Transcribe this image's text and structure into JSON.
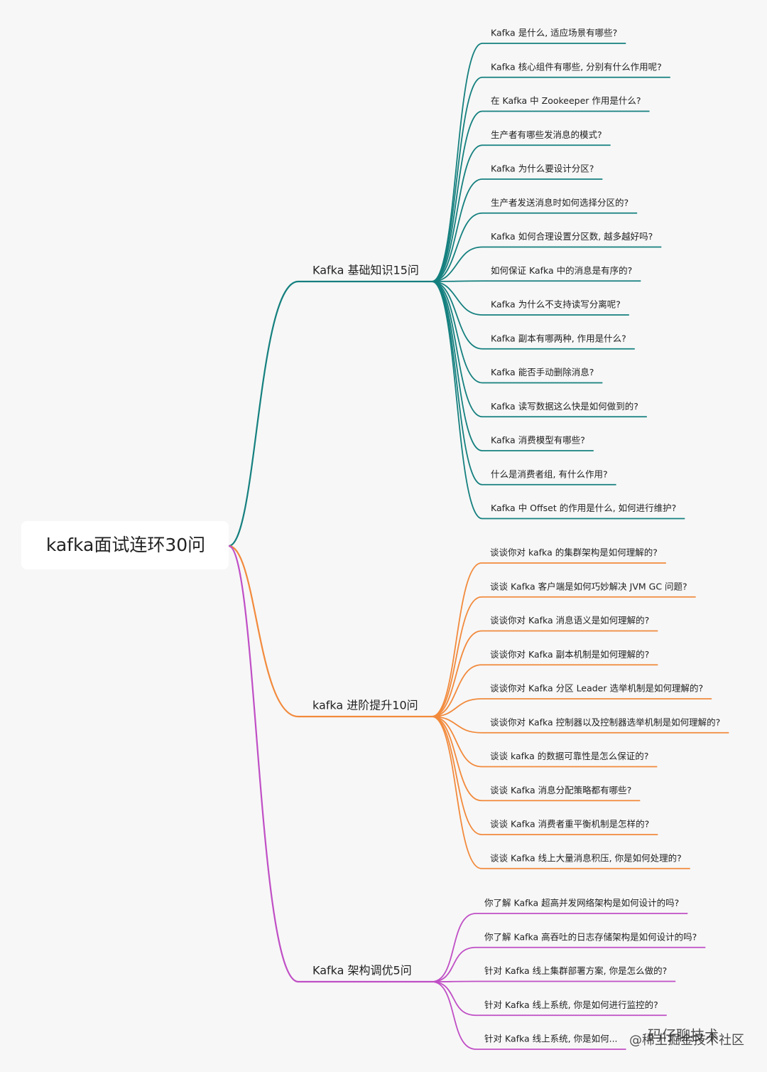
{
  "root": {
    "label": "kafka面试连环30问"
  },
  "branches": [
    {
      "label": "Kafka 基础知识15问",
      "color": "#15807f",
      "children": [
        "Kafka 是什么, 适应场景有哪些?",
        "Kafka 核心组件有哪些, 分别有什么作用呢?",
        "在 Kafka 中 Zookeeper 作用是什么?",
        "生产者有哪些发消息的模式?",
        "Kafka 为什么要设计分区?",
        "生产者发送消息时如何选择分区的?",
        "Kafka 如何合理设置分区数, 越多越好吗?",
        "如何保证 Kafka 中的消息是有序的?",
        "Kafka 为什么不支持读写分离呢?",
        "Kafka 副本有哪两种, 作用是什么?",
        "Kafka 能否手动删除消息?",
        "Kafka 读写数据这么快是如何做到的?",
        "Kafka 消费模型有哪些?",
        "什么是消费者组, 有什么作用?",
        "Kafka 中 Offset 的作用是什么, 如何进行维护?"
      ]
    },
    {
      "label": "kafka 进阶提升10问",
      "color": "#f28a3c",
      "children": [
        "谈谈你对 kafka 的集群架构是如何理解的?",
        "谈谈 Kafka 客户端是如何巧妙解决 JVM GC 问题?",
        "谈谈你对 Kafka 消息语义是如何理解的?",
        "谈谈你对 Kafka 副本机制是如何理解的?",
        "谈谈你对 Kafka 分区 Leader 选举机制是如何理解的?",
        "谈谈你对 Kafka 控制器以及控制器选举机制是如何理解的?",
        "谈谈 kafka 的数据可靠性是怎么保证的?",
        "谈谈 Kafka 消息分配策略都有哪些?",
        "谈谈 Kafka 消费者重平衡机制是怎样的?",
        "谈谈 Kafka 线上大量消息积压, 你是如何处理的?"
      ]
    },
    {
      "label": "Kafka 架构调优5问",
      "color": "#c04fc6",
      "children": [
        "你了解 Kafka 超高并发网络架构是如何设计的吗?",
        "你了解 Kafka 高吞吐的日志存储架构是如何设计的吗?",
        "针对 Kafka 线上集群部署方案, 你是怎么做的?",
        "针对 Kafka 线上系统, 你是如何进行监控的?",
        "针对 Kafka 线上系统, 你是如何..."
      ]
    }
  ],
  "watermark": [
    "码仔聊技术",
    "@稀土掘金技术社区"
  ]
}
